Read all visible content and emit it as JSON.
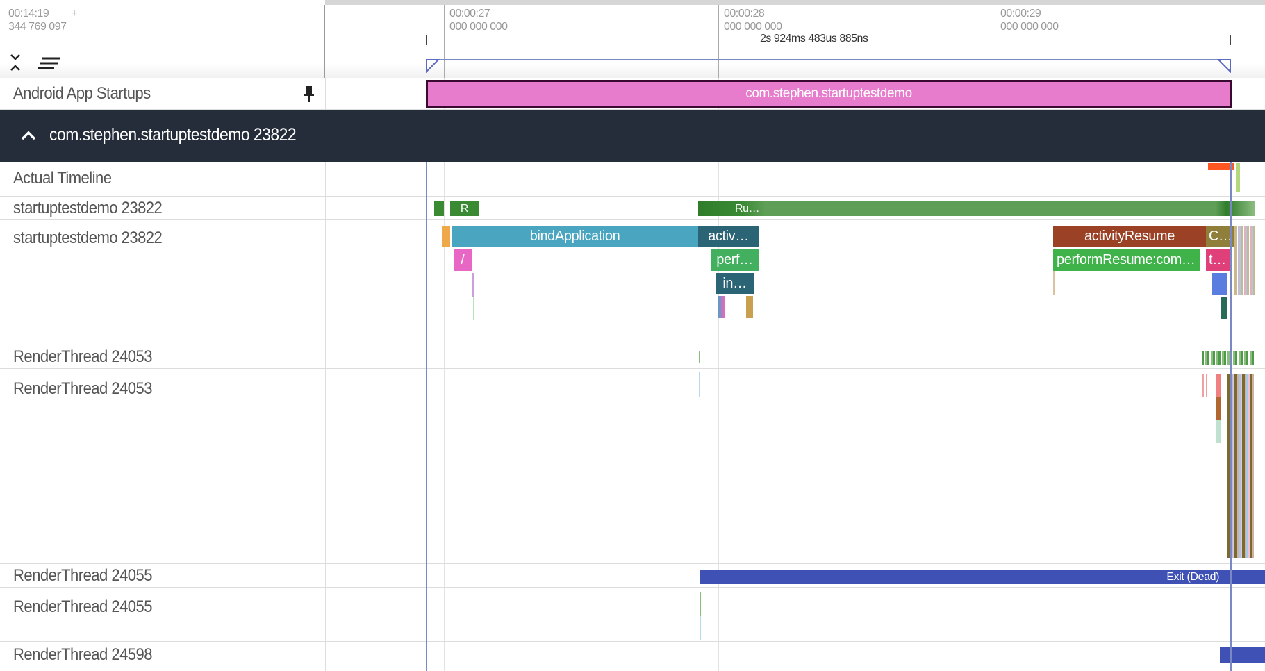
{
  "header": {
    "timestamp_main": "00:14:19",
    "timestamp_plus": "+",
    "timestamp_ns": "344 769 097",
    "ticks": [
      {
        "time": "00:00:27",
        "ns": "000 000 000"
      },
      {
        "time": "00:00:28",
        "ns": "000 000 000"
      },
      {
        "time": "00:00:29",
        "ns": "000 000 000"
      }
    ],
    "selection_duration": "2s 924ms 483us 885ns"
  },
  "pinned": {
    "label": "Android App Startups",
    "slice_label": "com.stephen.startuptestdemo",
    "slice_color": "#e87ccc"
  },
  "group": {
    "title": "com.stephen.startuptestdemo 23822",
    "expanded": true
  },
  "tracks": [
    {
      "label": "Actual Timeline"
    },
    {
      "label": "startuptestdemo 23822"
    },
    {
      "label": "startuptestdemo 23822"
    },
    {
      "label": "RenderThread 24053"
    },
    {
      "label": "RenderThread 24053"
    },
    {
      "label": "RenderThread 24055"
    },
    {
      "label": "RenderThread 24055"
    },
    {
      "label": "RenderThread 24598"
    }
  ],
  "thread_state": {
    "r_label": "R",
    "running_label": "Ru…",
    "color": "#3a8a34"
  },
  "slices": {
    "bindApplication": "bindApplication",
    "activ": "activ…",
    "perf": "perf…",
    "in": "in…",
    "slash": "/",
    "activityResume": "activityResume",
    "c": "C…",
    "performResume": "performResume:com…",
    "t": "t…"
  },
  "renderthread_24055_state": "Exit (Dead)",
  "colors": {
    "group_header_bg": "#262d3a",
    "bindApplication": "#4aa6c0",
    "activ": "#2b6475",
    "perf": "#43b060",
    "activityResume": "#9b4226",
    "performResume": "#3fb34a",
    "exit": "#3f51b5"
  }
}
